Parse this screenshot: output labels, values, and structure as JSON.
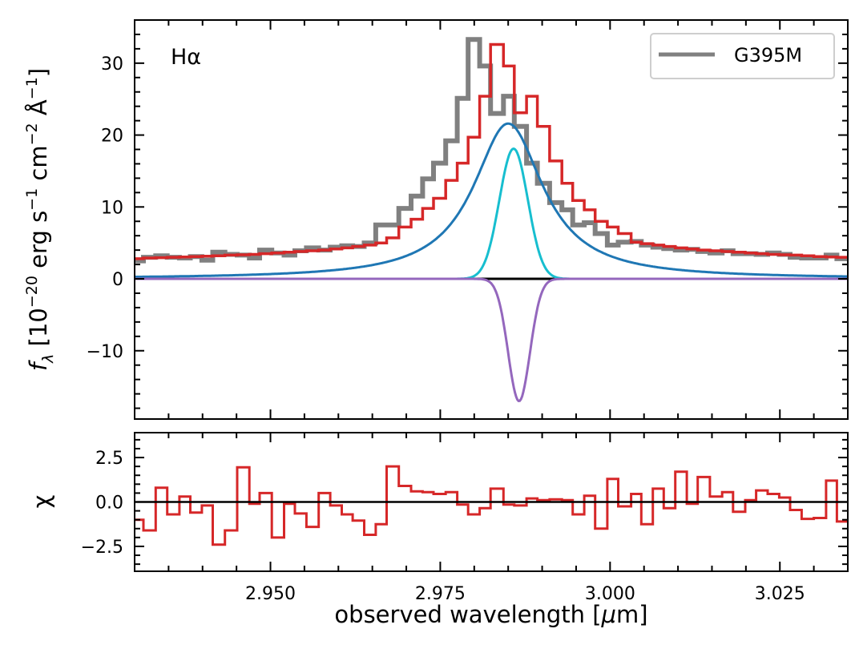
{
  "chart_data": [
    {
      "panel": "spectrum",
      "type": "line",
      "annotation": "Hα",
      "ylabel": "f_λ [10^-20 erg s^-1 cm^-2 Å^-1]",
      "ylabel_parts": {
        "f": "f",
        "lambda": "λ",
        "bracket_open": " [10",
        "exp1": "−20",
        "erg": "erg s",
        "exp2": "−1",
        "cm": " cm",
        "exp3": "−2",
        "ang": " Å",
        "exp4": "−1",
        "bracket_close": "]"
      },
      "xlim": [
        2.93,
        3.035
      ],
      "ylim": [
        -19.5,
        36
      ],
      "yticks": [
        -10,
        0,
        10,
        20,
        30
      ],
      "ytick_labels": [
        "−10",
        "0",
        "10",
        "20",
        "30"
      ],
      "legend": {
        "position": "top-right",
        "entries": [
          {
            "label": "G395M",
            "color": "#808080"
          }
        ]
      },
      "bin_edges": [
        2.93,
        2.9313,
        2.9331,
        2.9348,
        2.9366,
        2.9382,
        2.9399,
        2.9415,
        2.9433,
        2.9451,
        2.9469,
        2.9484,
        2.9502,
        2.952,
        2.9536,
        2.9553,
        2.9571,
        2.9588,
        2.9605,
        2.9621,
        2.9638,
        2.9655,
        2.9671,
        2.9689,
        2.9707,
        2.9724,
        2.974,
        2.9758,
        2.9775,
        2.9791,
        2.9808,
        2.9824,
        2.9843,
        2.9859,
        2.9877,
        2.9893,
        2.9911,
        2.9929,
        2.9945,
        2.9962,
        2.9978,
        2.9996,
        3.0012,
        3.0031,
        3.0046,
        3.0063,
        3.0079,
        3.0096,
        3.0113,
        3.0129,
        3.0147,
        3.0165,
        3.0181,
        3.0199,
        3.0215,
        3.0232,
        3.0249,
        3.0265,
        3.0282,
        3.03,
        3.0318,
        3.0334,
        3.035
      ],
      "series": [
        {
          "name": "G395M",
          "color": "#808080",
          "kind": "data-step",
          "values": [
            2.5,
            3.0,
            3.2,
            3.0,
            2.9,
            3.1,
            2.6,
            3.7,
            3.4,
            3.3,
            2.9,
            4.0,
            3.6,
            3.3,
            3.9,
            4.3,
            4.0,
            4.4,
            4.6,
            4.5,
            5.0,
            7.5,
            7.5,
            9.8,
            11.5,
            13.9,
            16.1,
            19.2,
            25.1,
            33.3,
            29.6,
            23.0,
            25.4,
            21.2,
            16.1,
            13.3,
            10.6,
            9.6,
            7.5,
            7.8,
            6.3,
            4.7,
            5.1,
            5.2,
            4.7,
            4.4,
            4.2,
            4.0,
            4.1,
            3.8,
            3.6,
            3.9,
            3.5,
            3.5,
            3.4,
            3.6,
            3.4,
            3.0,
            2.9,
            2.9,
            3.3,
            2.8
          ]
        },
        {
          "name": "total model",
          "color": "#d62728",
          "kind": "model-step",
          "values": [
            2.8,
            2.9,
            2.95,
            3.0,
            3.05,
            3.1,
            3.15,
            3.2,
            3.3,
            3.35,
            3.4,
            3.5,
            3.6,
            3.7,
            3.8,
            3.9,
            4.0,
            4.15,
            4.3,
            4.5,
            4.7,
            5.0,
            5.7,
            7.2,
            8.3,
            9.8,
            11.2,
            13.7,
            16.1,
            19.7,
            25.4,
            32.6,
            29.6,
            23.1,
            25.4,
            21.2,
            16.4,
            13.3,
            10.9,
            9.6,
            8.0,
            7.2,
            6.3,
            5.1,
            4.9,
            4.7,
            4.5,
            4.3,
            4.15,
            4.0,
            3.9,
            3.8,
            3.7,
            3.6,
            3.5,
            3.4,
            3.35,
            3.3,
            3.2,
            3.1,
            3.05,
            3.0
          ]
        },
        {
          "name": "broad component",
          "color": "#1f77b4",
          "kind": "lorentzian",
          "center": 2.985,
          "fwhm": 0.0125,
          "peak": 21.6,
          "offset": 0.0
        },
        {
          "name": "narrow component",
          "color": "#17becf",
          "kind": "gaussian",
          "center": 2.9858,
          "sigma": 0.0021,
          "peak": 18.1
        },
        {
          "name": "absorption component",
          "color": "#9467bd",
          "kind": "gaussian",
          "center": 2.9866,
          "sigma": 0.0016,
          "peak": -17.0
        },
        {
          "name": "zero line",
          "color": "#000000",
          "kind": "hline",
          "y": 0
        }
      ]
    },
    {
      "panel": "residuals",
      "type": "line",
      "ylabel": "χ",
      "xlabel": "observed wavelength [μm]",
      "xlabel_parts": {
        "pre": "observed wavelength [",
        "mu": "μ",
        "post": "m]"
      },
      "xlim": [
        2.93,
        3.035
      ],
      "ylim": [
        -3.9,
        3.9
      ],
      "xticks": [
        2.95,
        2.975,
        3.0,
        3.025
      ],
      "xtick_labels": [
        "2.950",
        "2.975",
        "3.000",
        "3.025"
      ],
      "yticks": [
        -2.5,
        0.0,
        2.5
      ],
      "ytick_labels": [
        "−2.5",
        "0.0",
        "2.5"
      ],
      "series": [
        {
          "name": "chi",
          "color": "#d62728",
          "kind": "step",
          "values": [
            -1.0,
            -1.6,
            0.8,
            -0.7,
            0.3,
            -0.6,
            -0.2,
            -2.4,
            -1.6,
            1.95,
            -0.1,
            0.5,
            -2.0,
            -0.1,
            -0.65,
            -1.4,
            0.5,
            -0.2,
            -0.7,
            -1.05,
            -1.85,
            -1.25,
            2.0,
            0.9,
            0.6,
            0.55,
            0.45,
            0.55,
            -0.15,
            -0.7,
            -0.35,
            0.75,
            -0.15,
            -0.2,
            0.2,
            0.1,
            0.15,
            0.1,
            -0.7,
            0.35,
            -1.5,
            1.3,
            -0.25,
            0.45,
            -1.25,
            0.75,
            -0.35,
            1.7,
            -0.1,
            1.4,
            0.3,
            0.55,
            -0.55,
            0.1,
            0.65,
            0.45,
            0.25,
            -0.45,
            -0.95,
            -0.9,
            1.2,
            -1.1
          ]
        },
        {
          "name": "zero line",
          "color": "#000000",
          "kind": "hline",
          "y": 0
        }
      ]
    }
  ]
}
